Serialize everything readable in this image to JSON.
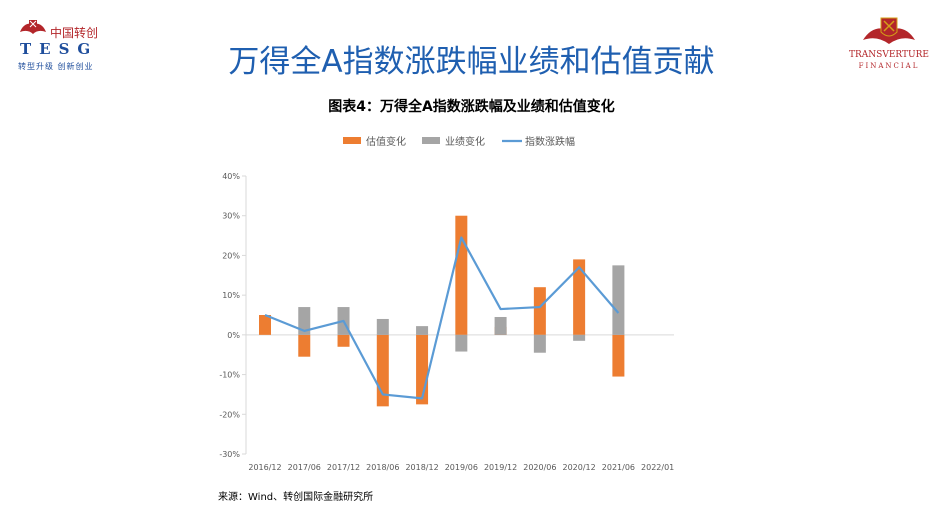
{
  "header": {
    "left_logo": {
      "cn_name": "中国转创",
      "brand": "TESG",
      "slogan": "转型升级 创新创业"
    },
    "right_logo": {
      "name": "TRANSVERTURE",
      "sub": "FINANCIAL"
    },
    "title": "万得全A指数涨跌幅业绩和估值贡献"
  },
  "source_note": "来源：Wind、转创国际金融研究所",
  "colors": {
    "valuation": "#ed7d31",
    "earnings": "#a5a5a5",
    "index": "#5b9bd5",
    "title_blue": "#1f5fb0",
    "brand_red": "#b3262a"
  },
  "chart_data": {
    "type": "bar",
    "title": "图表4：万得全A指数涨跌幅及业绩和估值变化",
    "categories": [
      "2016/12",
      "2017/06",
      "2017/12",
      "2018/06",
      "2018/12",
      "2019/06",
      "2019/12",
      "2020/06",
      "2020/12",
      "2021/06",
      "2022/01"
    ],
    "ylim": [
      -30,
      40
    ],
    "y_ticks": [
      -30,
      -20,
      -10,
      0,
      10,
      20,
      30,
      40
    ],
    "y_tick_labels": [
      "-30%",
      "-20%",
      "-10%",
      "0%",
      "10%",
      "20%",
      "30%",
      "40%"
    ],
    "legend_position": "top-center",
    "series": [
      {
        "name": "估值变化",
        "kind": "bar",
        "values": [
          5,
          -5.5,
          -3,
          -18,
          -17.5,
          30,
          2,
          12,
          19,
          -10.5,
          null
        ]
      },
      {
        "name": "业绩变化",
        "kind": "bar",
        "values": [
          0,
          7,
          7,
          4,
          2.2,
          -4.2,
          4.5,
          -4.5,
          -1.5,
          17.5,
          null
        ]
      },
      {
        "name": "指数涨跌幅",
        "kind": "line",
        "values": [
          5,
          1,
          3.5,
          -15,
          -16,
          24.5,
          6.5,
          7,
          17,
          5.5,
          null
        ]
      }
    ]
  }
}
